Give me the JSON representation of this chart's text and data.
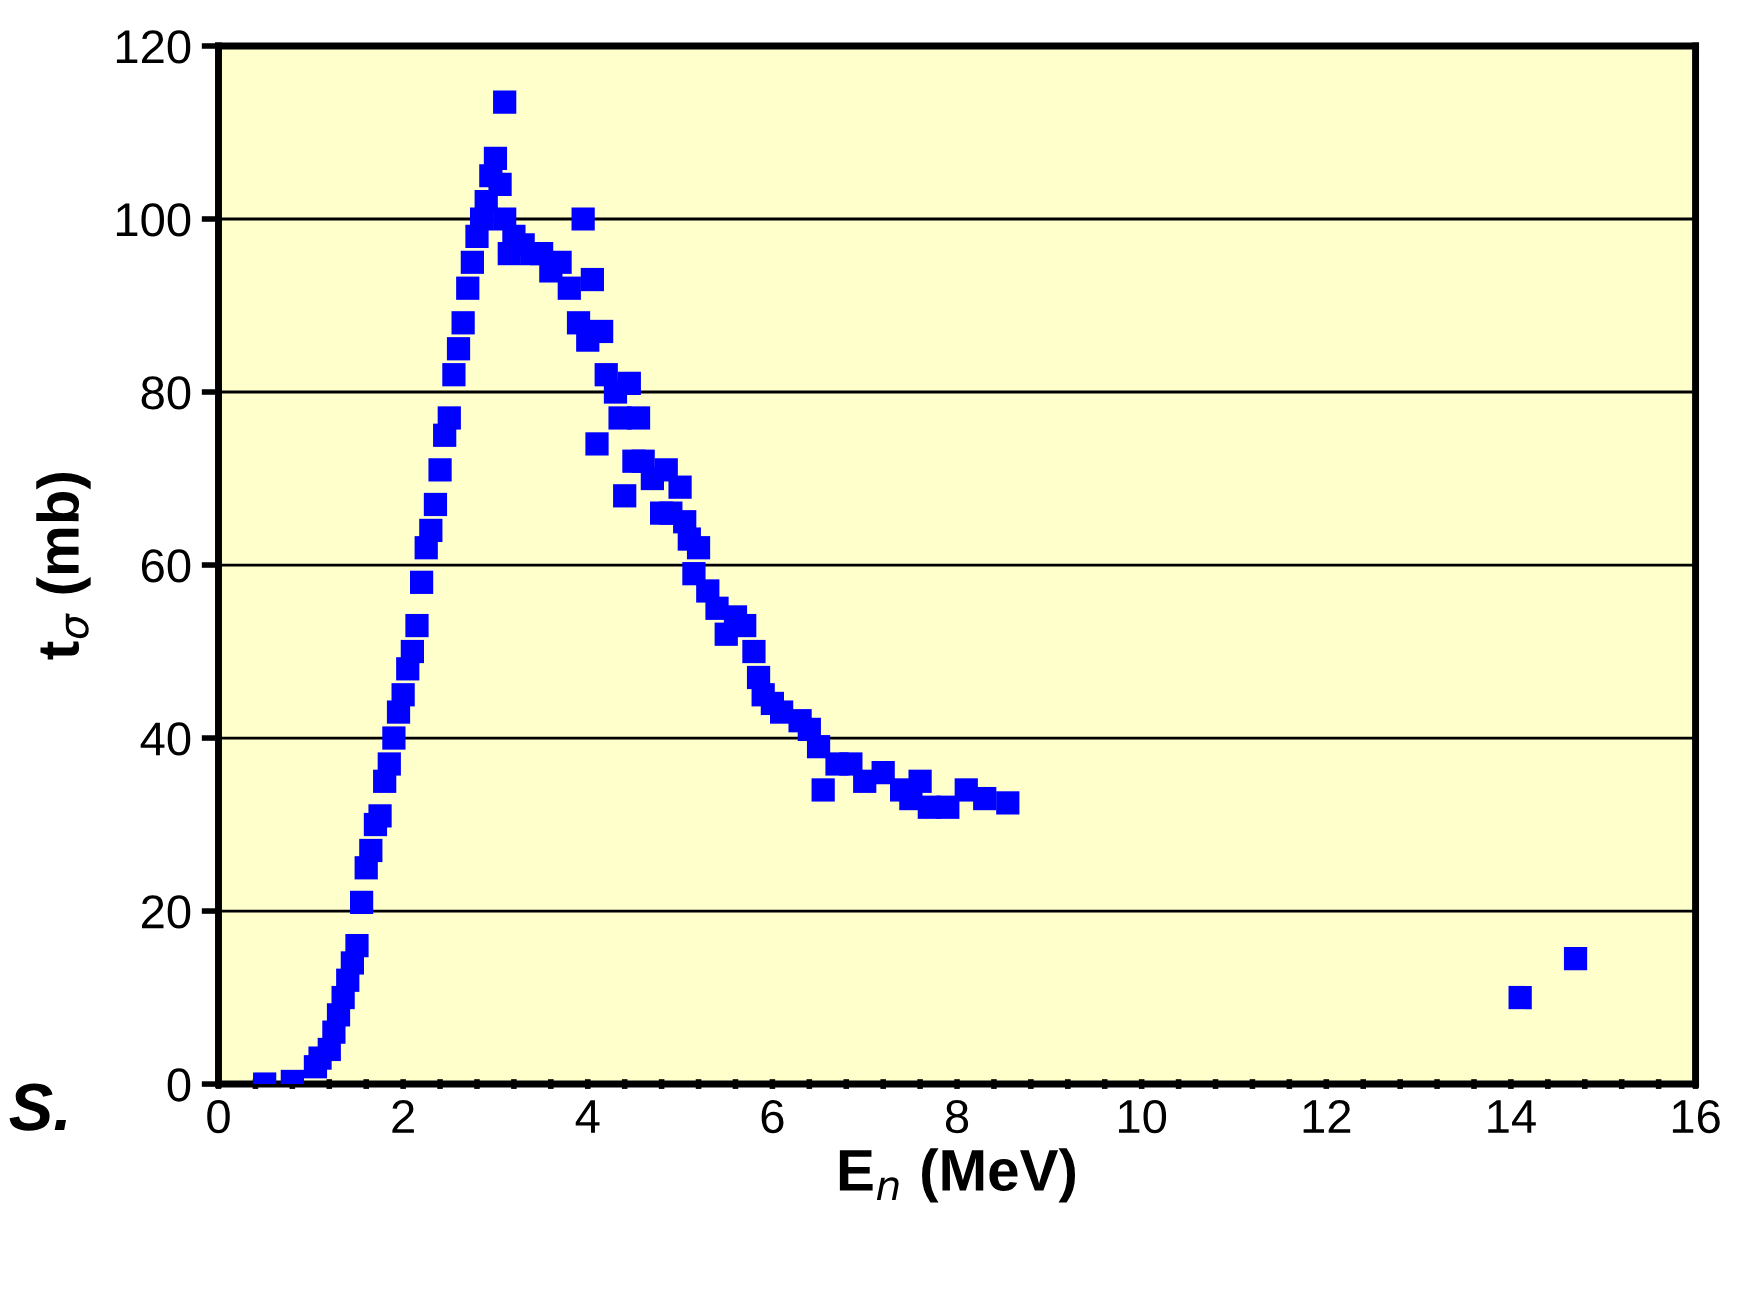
{
  "chart_data": {
    "type": "scatter",
    "xlabel": "E$_{n}$ (MeV)",
    "ylabel": "t$_{σ}$ (mb)",
    "annotations": [
      "S."
    ],
    "marker": "square",
    "grid": "y",
    "legend": false,
    "xlim": [
      0,
      16
    ],
    "ylim": [
      0,
      120
    ],
    "xticks": [
      0,
      {
        "value": 0.4,
        "label": null
      },
      {
        "value": 0.8,
        "label": null
      },
      {
        "value": 1.2,
        "label": null
      },
      {
        "value": 1.6,
        "label": null
      },
      2,
      {
        "value": 2.4,
        "label": null
      },
      {
        "value": 2.8,
        "label": null
      },
      {
        "value": 3.2,
        "label": null
      },
      {
        "value": 3.6,
        "label": null
      },
      4,
      {
        "value": 4.4,
        "label": null
      },
      {
        "value": 4.8,
        "label": null
      },
      {
        "value": 5.2,
        "label": null
      },
      {
        "value": 5.6,
        "label": null
      },
      6,
      {
        "value": 6.4,
        "label": null
      },
      {
        "value": 6.8,
        "label": null
      },
      {
        "value": 7.2,
        "label": null
      },
      {
        "value": 7.6,
        "label": null
      },
      8,
      {
        "value": 8.4,
        "label": null
      },
      {
        "value": 8.8,
        "label": null
      },
      {
        "value": 9.2,
        "label": null
      },
      {
        "value": 9.6,
        "label": null
      },
      10,
      {
        "value": 10.4,
        "label": null
      },
      {
        "value": 10.8,
        "label": null
      },
      {
        "value": 11.2,
        "label": null
      },
      {
        "value": 11.6,
        "label": null
      },
      12,
      {
        "value": 12.4,
        "label": null
      },
      {
        "value": 12.8,
        "label": null
      },
      {
        "value": 13.2,
        "label": null
      },
      {
        "value": 13.6,
        "label": null
      },
      14,
      {
        "value": 14.4,
        "label": null
      },
      {
        "value": 14.8,
        "label": null
      },
      {
        "value": 15.2,
        "label": null
      },
      {
        "value": 15.6,
        "label": null
      },
      16
    ],
    "yticks": [
      0,
      20,
      40,
      60,
      80,
      100,
      120
    ],
    "series": [
      {
        "color": "#0000ff",
        "x": [
          0.5,
          0.8,
          1.05,
          1.1,
          1.2,
          1.25,
          1.3,
          1.35,
          1.4,
          1.45,
          1.5,
          1.55,
          1.6,
          1.65,
          1.7,
          1.75,
          1.8,
          1.85,
          1.9,
          1.95,
          2.0,
          2.05,
          2.1,
          2.15,
          2.2,
          2.25,
          2.3,
          2.35,
          2.4,
          2.45,
          2.5,
          2.55,
          2.6,
          2.65,
          2.7,
          2.75,
          2.8,
          2.85,
          2.9,
          2.95,
          3.0,
          3.05,
          3.1,
          3.1,
          3.15,
          3.2,
          3.3,
          3.4,
          3.5,
          3.6,
          3.7,
          3.8,
          3.9,
          3.95,
          4.0,
          4.05,
          4.1,
          4.15,
          4.2,
          4.3,
          4.35,
          4.4,
          4.45,
          4.5,
          4.55,
          4.6,
          4.7,
          4.8,
          4.85,
          4.9,
          5.0,
          5.05,
          5.1,
          5.15,
          5.2,
          5.3,
          5.4,
          5.5,
          5.6,
          5.7,
          5.8,
          5.85,
          5.9,
          6.0,
          6.1,
          6.3,
          6.4,
          6.5,
          6.55,
          6.7,
          6.85,
          7.0,
          7.2,
          7.4,
          7.5,
          7.6,
          7.7,
          7.9,
          8.1,
          8.3,
          8.55,
          14.1,
          14.7
        ],
        "values": [
          0,
          0.3,
          2,
          3,
          4,
          6,
          8,
          10,
          12,
          14,
          16,
          21,
          25,
          27,
          30,
          31,
          35,
          37,
          40,
          43,
          45,
          48,
          50,
          53,
          58,
          62,
          64,
          67,
          71,
          75,
          77,
          82,
          85,
          88,
          92,
          95,
          98,
          100,
          102,
          105,
          107,
          104,
          113.5,
          100,
          96,
          98,
          97,
          96,
          96,
          94,
          95,
          92,
          88,
          100,
          86,
          93,
          74,
          87,
          82,
          80,
          77,
          68,
          81,
          72,
          77,
          72,
          70,
          66,
          71,
          66,
          69,
          65,
          63,
          59,
          62,
          57,
          55,
          52,
          54,
          53,
          50,
          47,
          45,
          44,
          43,
          42,
          41,
          39,
          34,
          37,
          37,
          35,
          36,
          34,
          33,
          35,
          32,
          32,
          34,
          33,
          32.5,
          10,
          14.5
        ]
      }
    ]
  }
}
